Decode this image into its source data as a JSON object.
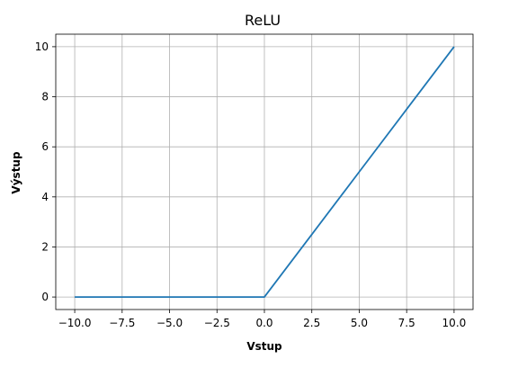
{
  "chart_data": {
    "type": "line",
    "title": "ReLU",
    "xlabel": "Vstup",
    "ylabel": "Výstup",
    "xlim": [
      -11.0,
      11.0
    ],
    "ylim": [
      -0.5,
      10.5
    ],
    "grid": true,
    "x_ticks": [
      -10.0,
      -7.5,
      -5.0,
      -2.5,
      0.0,
      2.5,
      5.0,
      7.5,
      10.0
    ],
    "x_tick_labels": [
      "−10.0",
      "−7.5",
      "−5.0",
      "−2.5",
      "0.0",
      "2.5",
      "5.0",
      "7.5",
      "10.0"
    ],
    "y_ticks": [
      0,
      2,
      4,
      6,
      8,
      10
    ],
    "y_tick_labels": [
      "0",
      "2",
      "4",
      "6",
      "8",
      "10"
    ],
    "series": [
      {
        "color": "#1f77b4",
        "x": [
          -10,
          -7.5,
          -5,
          -2.5,
          0,
          2.5,
          5,
          7.5,
          10
        ],
        "y": [
          0,
          0,
          0,
          0,
          0,
          2.5,
          5,
          7.5,
          10
        ]
      }
    ]
  }
}
